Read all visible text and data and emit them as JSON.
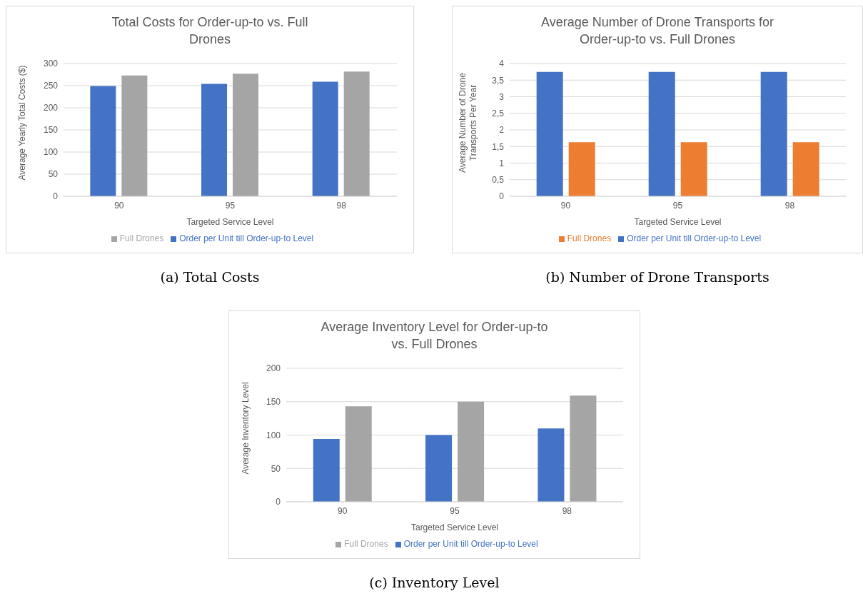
{
  "chart_data": [
    {
      "type": "bar",
      "title": "Total Costs for Order-up-to vs. Full Drones",
      "xlabel": "Targeted  Service Level",
      "ylabel": "Average Yearly Total Costs ($)",
      "categories": [
        "90",
        "95",
        "98"
      ],
      "series": [
        {
          "name": "Order per Unit till Order-up-to Level",
          "color": "#4472c4",
          "values": [
            249,
            254,
            259
          ]
        },
        {
          "name": "Full Drones",
          "color": "#a5a5a5",
          "values": [
            273,
            277,
            282
          ]
        }
      ],
      "ylim": [
        0,
        300
      ],
      "yticks": [
        0,
        50,
        100,
        150,
        200,
        250,
        300
      ],
      "grid": "y",
      "legend": "bottom",
      "annotations": [
        "(a) Total Costs"
      ]
    },
    {
      "type": "bar",
      "title": "Average Number of Drone Transports for Order-up-to vs. Full Drones",
      "xlabel": "Targeted  Service Level",
      "ylabel": "Average Number  of Drone Transports Per Year",
      "categories": [
        "90",
        "95",
        "98"
      ],
      "series": [
        {
          "name": "Order per Unit till Order-up-to Level",
          "color": "#4472c4",
          "values": [
            3.75,
            3.75,
            3.75
          ]
        },
        {
          "name": "Full Drones",
          "color": "#ed7d31",
          "values": [
            1.63,
            1.63,
            1.63
          ]
        }
      ],
      "ylim": [
        0,
        4
      ],
      "yticks": [
        0,
        {
          "value": 0.5,
          "label": "0,5"
        },
        1,
        {
          "value": 1.5,
          "label": "1,5"
        },
        2,
        {
          "value": 2.5,
          "label": "2,5"
        },
        3,
        {
          "value": 3.5,
          "label": "3,5"
        },
        4
      ],
      "grid": "y",
      "legend": "bottom",
      "annotations": [
        "(b) Number of Drone Transports"
      ]
    },
    {
      "type": "bar",
      "title": "Average Inventory Level for Order-up-to vs. Full Drones",
      "xlabel": "Targeted  Service Level",
      "ylabel": "Average Inventory Level",
      "categories": [
        "90",
        "95",
        "98"
      ],
      "series": [
        {
          "name": "Order per Unit till Order-up-to Level",
          "color": "#4472c4",
          "values": [
            94,
            100,
            110
          ]
        },
        {
          "name": "Full Drones",
          "color": "#a5a5a5",
          "values": [
            143,
            150,
            159
          ]
        }
      ],
      "ylim": [
        0,
        200
      ],
      "yticks": [
        0,
        50,
        100,
        150,
        200
      ],
      "grid": "y",
      "legend": "bottom",
      "annotations": [
        "(c) Inventory Level"
      ]
    }
  ]
}
